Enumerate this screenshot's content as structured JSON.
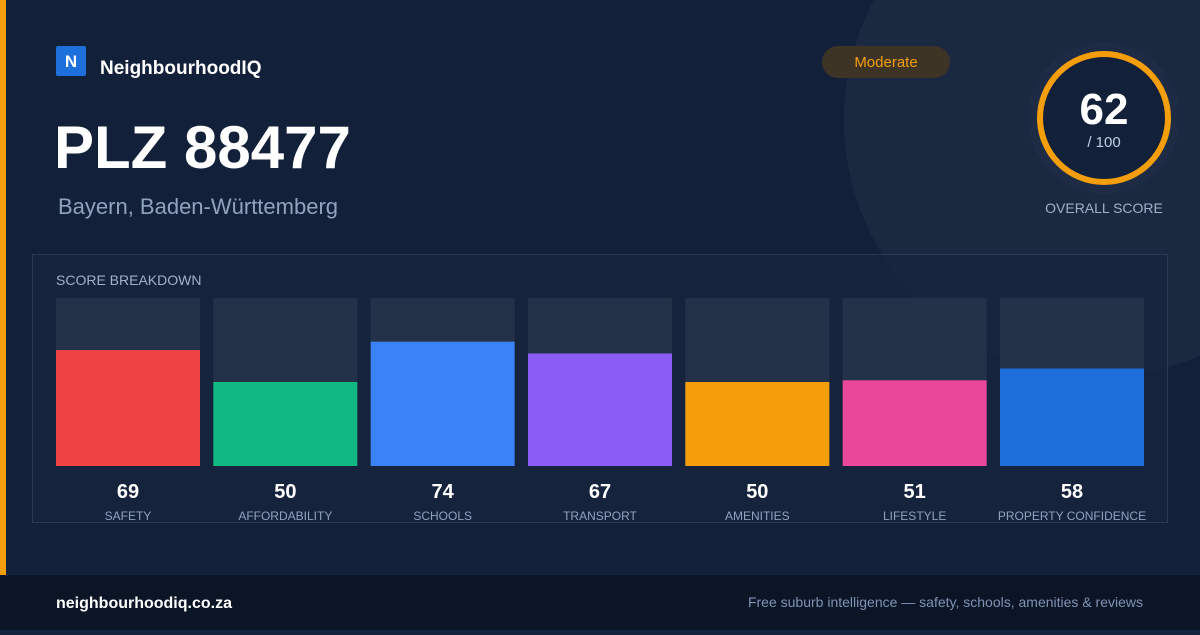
{
  "brand": {
    "logo": "N",
    "name": "NeighbourhoodIQ"
  },
  "header": {
    "title": "PLZ 88477",
    "subtitle": "Bayern, Baden-Württemberg",
    "badge": "Moderate"
  },
  "score": {
    "value": 62,
    "out_of": "/ 100",
    "caption": "OVERALL SCORE"
  },
  "chart_data": {
    "type": "bar",
    "title": "SCORE BREAKDOWN",
    "categories": [
      "SAFETY",
      "AFFORDABILITY",
      "SCHOOLS",
      "TRANSPORT",
      "AMENITIES",
      "LIFESTYLE",
      "PROPERTY CONFIDENCE"
    ],
    "values": [
      69,
      50,
      74,
      67,
      50,
      51,
      58
    ],
    "colors": [
      "#ef4444",
      "#10b981",
      "#3b82f6",
      "#8b5cf6",
      "#f59e0b",
      "#ec4899",
      "#1d6fdc"
    ],
    "ylim": [
      0,
      100
    ]
  },
  "footer": {
    "site": "neighbourhoodiq.co.za",
    "tagline": "Free suburb intelligence — safety, schools, amenities & reviews"
  }
}
